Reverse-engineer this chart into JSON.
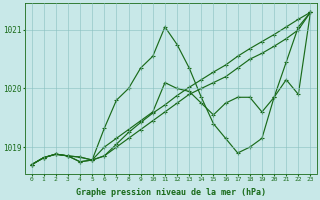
{
  "xlabel": "Graphe pression niveau de la mer (hPa)",
  "x_ticks": [
    0,
    1,
    2,
    3,
    4,
    5,
    6,
    7,
    8,
    9,
    10,
    11,
    12,
    13,
    14,
    15,
    16,
    17,
    18,
    19,
    20,
    21,
    22,
    23
  ],
  "ylim": [
    1018.55,
    1021.45
  ],
  "yticks": [
    1019,
    1020,
    1021
  ],
  "background_color": "#c8e8e8",
  "line_color": "#1a6b1a",
  "line1": [
    1018.7,
    1018.82,
    1018.88,
    1018.85,
    1018.83,
    1018.78,
    1018.85,
    1019.0,
    1019.15,
    1019.3,
    1019.45,
    1019.6,
    1019.75,
    1019.9,
    1020.0,
    1020.1,
    1020.2,
    1020.35,
    1020.5,
    1020.6,
    1020.72,
    1020.85,
    1021.0,
    1021.3
  ],
  "line2": [
    1018.7,
    1018.82,
    1018.88,
    1018.85,
    1018.83,
    1018.78,
    1018.85,
    1019.05,
    1019.25,
    1019.42,
    1019.58,
    1019.72,
    1019.88,
    1020.02,
    1020.15,
    1020.28,
    1020.4,
    1020.55,
    1020.68,
    1020.8,
    1020.92,
    1021.05,
    1021.18,
    1021.3
  ],
  "line3": [
    1018.7,
    1018.82,
    1018.88,
    1018.85,
    1018.75,
    1018.78,
    1019.32,
    1019.8,
    1020.0,
    1020.35,
    1020.55,
    1021.05,
    1020.75,
    1020.35,
    1019.85,
    1019.4,
    1019.15,
    1018.9,
    1019.0,
    1019.15,
    1019.85,
    1020.45,
    1021.05,
    1021.3
  ],
  "line4": [
    1018.7,
    1018.82,
    1018.88,
    1018.85,
    1018.75,
    1018.78,
    1019.0,
    1019.15,
    1019.3,
    1019.45,
    1019.6,
    1020.1,
    1020.0,
    1019.95,
    1019.75,
    1019.55,
    1019.75,
    1019.85,
    1019.85,
    1019.6,
    1019.85,
    1020.15,
    1019.9,
    1021.3
  ]
}
